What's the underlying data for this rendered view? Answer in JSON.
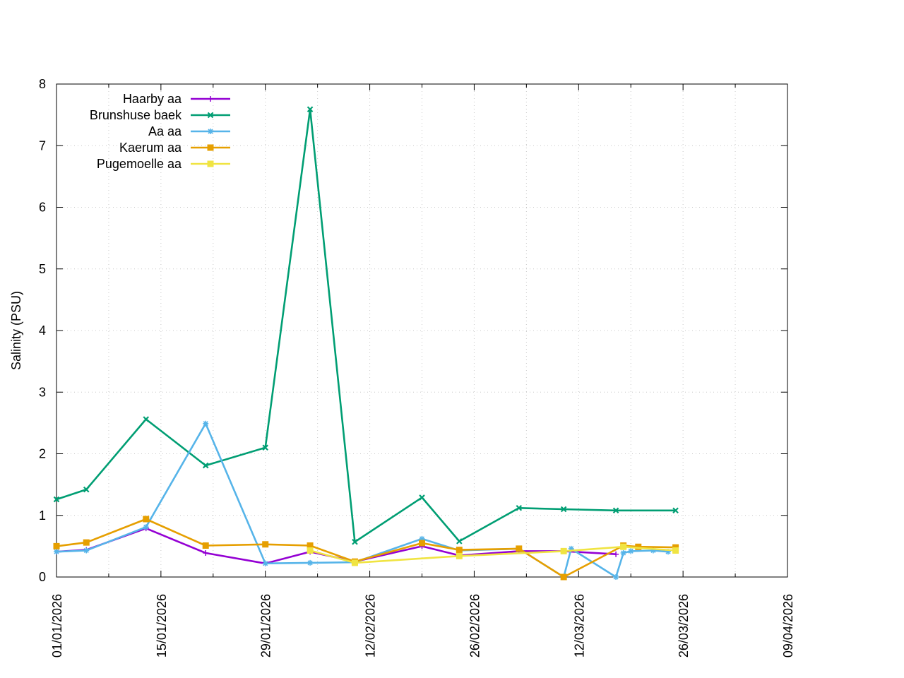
{
  "chart_data": {
    "type": "line",
    "title": "",
    "xlabel": "",
    "ylabel": "Salinity (PSU)",
    "ylim": [
      0,
      8
    ],
    "xlim": [
      "2026-01-01",
      "2026-04-09"
    ],
    "y_ticks": [
      "0",
      "1",
      "2",
      "3",
      "4",
      "5",
      "6",
      "7",
      "8"
    ],
    "x_ticks": [
      "01/01/2026",
      "15/01/2026",
      "29/01/2026",
      "12/02/2026",
      "26/02/2026",
      "12/03/2026",
      "26/03/2026",
      "09/04/2026"
    ],
    "grid": true,
    "legend_position": "top-left",
    "series": [
      {
        "name": "Haarby aa",
        "color": "#9400d3",
        "marker": "plus",
        "points": [
          {
            "x": "2026-01-01",
            "y": 0.41
          },
          {
            "x": "2026-01-05",
            "y": 0.44
          },
          {
            "x": "2026-01-13",
            "y": 0.79
          },
          {
            "x": "2026-01-21",
            "y": 0.39
          },
          {
            "x": "2026-01-29",
            "y": 0.22
          },
          {
            "x": "2026-02-04",
            "y": 0.41
          },
          {
            "x": "2026-02-10",
            "y": 0.25
          },
          {
            "x": "2026-02-19",
            "y": 0.5
          },
          {
            "x": "2026-02-24",
            "y": 0.35
          },
          {
            "x": "2026-03-04",
            "y": 0.42
          },
          {
            "x": "2026-03-10",
            "y": 0.42
          },
          {
            "x": "2026-03-17",
            "y": 0.37
          }
        ]
      },
      {
        "name": "Brunshuse baek",
        "color": "#009e73",
        "marker": "cross",
        "points": [
          {
            "x": "2026-01-01",
            "y": 1.26
          },
          {
            "x": "2026-01-05",
            "y": 1.42
          },
          {
            "x": "2026-01-13",
            "y": 2.56
          },
          {
            "x": "2026-01-21",
            "y": 1.81
          },
          {
            "x": "2026-01-29",
            "y": 2.1
          },
          {
            "x": "2026-02-04",
            "y": 7.59
          },
          {
            "x": "2026-02-10",
            "y": 0.57
          },
          {
            "x": "2026-02-19",
            "y": 1.29
          },
          {
            "x": "2026-02-24",
            "y": 0.58
          },
          {
            "x": "2026-03-04",
            "y": 1.12
          },
          {
            "x": "2026-03-10",
            "y": 1.1
          },
          {
            "x": "2026-03-17",
            "y": 1.08
          },
          {
            "x": "2026-03-25",
            "y": 1.08
          }
        ]
      },
      {
        "name": "Aa aa",
        "color": "#56b4e9",
        "marker": "star",
        "points": [
          {
            "x": "2026-01-01",
            "y": 0.41
          },
          {
            "x": "2026-01-05",
            "y": 0.43
          },
          {
            "x": "2026-01-13",
            "y": 0.81
          },
          {
            "x": "2026-01-21",
            "y": 2.49
          },
          {
            "x": "2026-01-29",
            "y": 0.22
          },
          {
            "x": "2026-02-04",
            "y": 0.23
          },
          {
            "x": "2026-02-10",
            "y": 0.24
          },
          {
            "x": "2026-02-19",
            "y": 0.62
          },
          {
            "x": "2026-02-24",
            "y": 0.43
          },
          {
            "x": "2026-03-04",
            "y": 0.46
          },
          {
            "x": "2026-03-10",
            "y": 0.0
          },
          {
            "x": "2026-03-11",
            "y": 0.46
          },
          {
            "x": "2026-03-17",
            "y": 0.0
          },
          {
            "x": "2026-03-18",
            "y": 0.39
          },
          {
            "x": "2026-03-19",
            "y": 0.42
          },
          {
            "x": "2026-03-22",
            "y": 0.43
          },
          {
            "x": "2026-03-24",
            "y": 0.41
          }
        ]
      },
      {
        "name": "Kaerum aa",
        "color": "#e69f00",
        "marker": "square",
        "points": [
          {
            "x": "2026-01-01",
            "y": 0.5
          },
          {
            "x": "2026-01-05",
            "y": 0.56
          },
          {
            "x": "2026-01-13",
            "y": 0.94
          },
          {
            "x": "2026-01-21",
            "y": 0.51
          },
          {
            "x": "2026-01-29",
            "y": 0.53
          },
          {
            "x": "2026-02-04",
            "y": 0.51
          },
          {
            "x": "2026-02-10",
            "y": 0.25
          },
          {
            "x": "2026-02-19",
            "y": 0.55
          },
          {
            "x": "2026-02-24",
            "y": 0.44
          },
          {
            "x": "2026-03-04",
            "y": 0.46
          },
          {
            "x": "2026-03-10",
            "y": 0.0
          },
          {
            "x": "2026-03-18",
            "y": 0.51
          },
          {
            "x": "2026-03-20",
            "y": 0.49
          },
          {
            "x": "2026-03-25",
            "y": 0.48
          }
        ]
      },
      {
        "name": "Pugemoelle aa",
        "color": "#f0e442",
        "marker": "square",
        "points": [
          {
            "x": "2026-02-04",
            "y": 0.43
          },
          {
            "x": "2026-02-10",
            "y": 0.23
          },
          {
            "x": "2026-02-24",
            "y": 0.34
          },
          {
            "x": "2026-03-10",
            "y": 0.42
          },
          {
            "x": "2026-03-18",
            "y": 0.49
          },
          {
            "x": "2026-03-25",
            "y": 0.43
          }
        ]
      }
    ]
  }
}
